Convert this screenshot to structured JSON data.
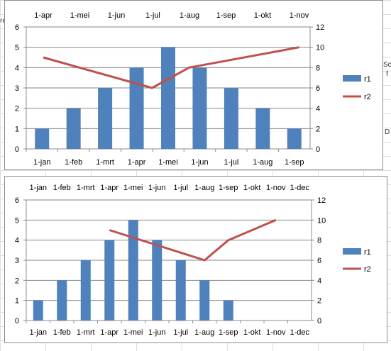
{
  "spreadsheet": {
    "peek_texts": [
      "re",
      "Sc",
      "f",
      "D"
    ]
  },
  "chart_data": [
    {
      "type": "bar",
      "title": "",
      "colors": {
        "r1": "#4f81bd",
        "r2": "#c0504d",
        "grid": "#868686"
      },
      "grid": true,
      "legend": "right",
      "primary_x": {
        "type": "date",
        "tick_labels": [
          "1-jan",
          "1-feb",
          "1-mrt",
          "1-apr",
          "1-mei",
          "1-jun",
          "1-jul",
          "1-aug",
          "1-sep"
        ]
      },
      "secondary_x": {
        "type": "date",
        "position": "top",
        "tick_labels": [
          "1-apr",
          "1-mei",
          "1-jun",
          "1-jul",
          "1-aug",
          "1-sep",
          "1-okt",
          "1-nov"
        ]
      },
      "ylim": [
        0,
        6
      ],
      "y_ticks": [
        0,
        1,
        2,
        3,
        4,
        5,
        6
      ],
      "y2lim": [
        0,
        12
      ],
      "y2_ticks": [
        0,
        2,
        4,
        6,
        8,
        10,
        12
      ],
      "series": [
        {
          "name": "r1",
          "type": "bar",
          "axis": "primary",
          "x": [
            "1-jan",
            "1-feb",
            "1-mrt",
            "1-apr",
            "1-mei",
            "1-jun",
            "1-jul",
            "1-aug",
            "1-sep"
          ],
          "values": [
            1,
            2,
            3,
            4,
            5,
            4,
            3,
            2,
            1
          ]
        },
        {
          "name": "r2",
          "type": "line",
          "axis": "secondary",
          "x": [
            "1-apr",
            "1-jul",
            "1-aug",
            "1-nov"
          ],
          "values": [
            9,
            6,
            8,
            10
          ]
        }
      ]
    },
    {
      "type": "bar",
      "title": "",
      "colors": {
        "r1": "#4f81bd",
        "r2": "#c0504d",
        "grid": "#868686"
      },
      "grid": true,
      "legend": "right",
      "primary_x": {
        "type": "date",
        "tick_labels": [
          "1-jan",
          "1-feb",
          "1-mrt",
          "1-apr",
          "1-mei",
          "1-jun",
          "1-jul",
          "1-aug",
          "1-sep",
          "1-okt",
          "1-nov",
          "1-dec"
        ]
      },
      "secondary_x": {
        "type": "date",
        "position": "top",
        "tick_labels": [
          "1-jan",
          "1-feb",
          "1-mrt",
          "1-apr",
          "1-mei",
          "1-jun",
          "1-jul",
          "1-aug",
          "1-sep",
          "1-okt",
          "1-nov",
          "1-dec"
        ]
      },
      "ylim": [
        0,
        6
      ],
      "y_ticks": [
        0,
        1,
        2,
        3,
        4,
        5,
        6
      ],
      "y2lim": [
        0,
        12
      ],
      "y2_ticks": [
        0,
        2,
        4,
        6,
        8,
        10,
        12
      ],
      "series": [
        {
          "name": "r1",
          "type": "bar",
          "axis": "primary",
          "x": [
            "1-jan",
            "1-feb",
            "1-mrt",
            "1-apr",
            "1-mei",
            "1-jun",
            "1-jul",
            "1-aug",
            "1-sep"
          ],
          "values": [
            1,
            2,
            3,
            4,
            5,
            4,
            3,
            2,
            1
          ]
        },
        {
          "name": "r2",
          "type": "line",
          "axis": "secondary",
          "x": [
            "1-apr",
            "1-aug",
            "1-sep",
            "1-nov"
          ],
          "values": [
            9,
            6,
            8,
            10
          ]
        }
      ]
    }
  ]
}
